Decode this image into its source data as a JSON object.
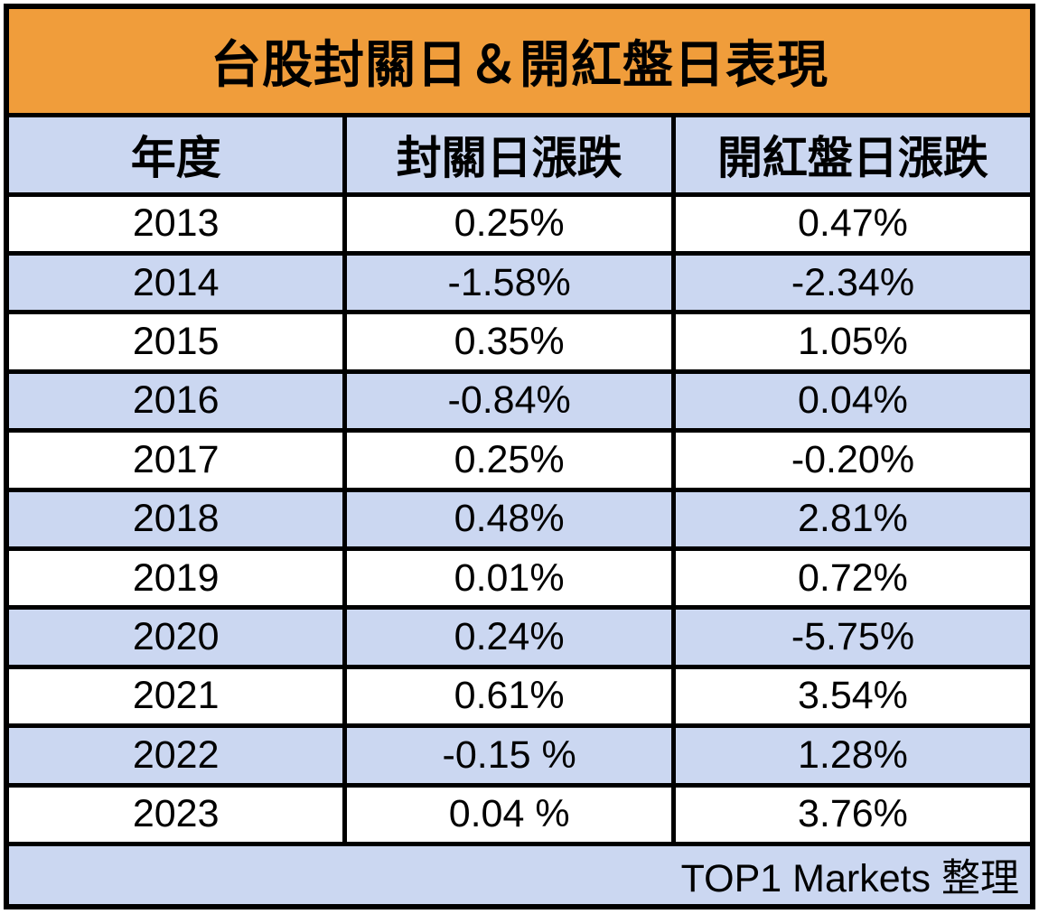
{
  "chart_data": {
    "type": "table",
    "title": "台股封關日＆開紅盤日表現",
    "columns": [
      "年度",
      "封關日漲跌",
      "開紅盤日漲跌"
    ],
    "cells": [
      [
        "2013",
        "0.25%",
        "0.47%"
      ],
      [
        "2014",
        "-1.58%",
        "-2.34%"
      ],
      [
        "2015",
        "0.35%",
        "1.05%"
      ],
      [
        "2016",
        "-0.84%",
        "0.04%"
      ],
      [
        "2017",
        "0.25%",
        "-0.20%"
      ],
      [
        "2018",
        "0.48%",
        "2.81%"
      ],
      [
        "2019",
        "0.01%",
        "0.72%"
      ],
      [
        "2020",
        "0.24%",
        "-5.75%"
      ],
      [
        "2021",
        "0.61%",
        "3.54%"
      ],
      [
        "2022",
        "-0.15 %",
        "1.28%"
      ],
      [
        "2023",
        "0.04 %",
        "3.76%"
      ]
    ],
    "categories": [
      2013,
      2014,
      2015,
      2016,
      2017,
      2018,
      2019,
      2020,
      2021,
      2022,
      2023
    ],
    "series": [
      {
        "name": "封關日漲跌",
        "values": [
          0.25,
          -1.58,
          0.35,
          -0.84,
          0.25,
          0.48,
          0.01,
          0.24,
          0.61,
          -0.15,
          0.04
        ]
      },
      {
        "name": "開紅盤日漲跌",
        "values": [
          0.47,
          -2.34,
          1.05,
          0.04,
          -0.2,
          2.81,
          0.72,
          -5.75,
          3.54,
          1.28,
          3.76
        ]
      }
    ],
    "source": "TOP1 Markets 整理"
  },
  "colors": {
    "title_bg": "#F09D3B",
    "band_bg": "#CBD7F1",
    "border": "#000000",
    "text": "#000000"
  }
}
